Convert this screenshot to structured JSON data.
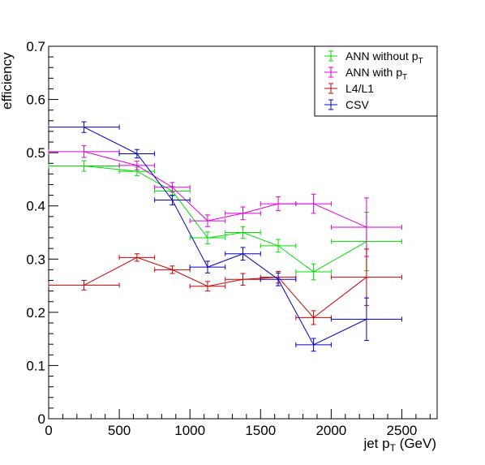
{
  "chart_data": {
    "type": "line",
    "title": "",
    "xlabel": {
      "main": "jet p",
      "sub": "T",
      "suffix": " (GeV)"
    },
    "ylabel": "efficiency",
    "xlim": [
      0,
      2750
    ],
    "ylim": [
      0,
      0.7
    ],
    "x_ticks": [
      0,
      500,
      1000,
      1500,
      2000,
      2500
    ],
    "y_ticks": [
      0,
      0.1,
      0.2,
      0.3,
      0.4,
      0.5,
      0.6,
      0.7
    ],
    "x_tick_labels": [
      "0",
      "500",
      "1000",
      "1500",
      "2000",
      "2500"
    ],
    "y_tick_labels": [
      "0",
      "0.1",
      "0.2",
      "0.3",
      "0.4",
      "0.5",
      "0.6",
      "0.7"
    ],
    "grid": false,
    "legend_position": "top-right",
    "series": [
      {
        "name": {
          "main": "ANN without p",
          "sub": "T"
        },
        "color": "#00dd00",
        "points": [
          {
            "x": 250,
            "xerr": 250,
            "y": 0.475,
            "yerr": 0.01
          },
          {
            "x": 625,
            "xerr": 125,
            "y": 0.465,
            "yerr": 0.008
          },
          {
            "x": 875,
            "xerr": 125,
            "y": 0.428,
            "yerr": 0.009
          },
          {
            "x": 1125,
            "xerr": 125,
            "y": 0.34,
            "yerr": 0.011
          },
          {
            "x": 1375,
            "xerr": 125,
            "y": 0.35,
            "yerr": 0.011
          },
          {
            "x": 1625,
            "xerr": 125,
            "y": 0.325,
            "yerr": 0.012
          },
          {
            "x": 1875,
            "xerr": 125,
            "y": 0.276,
            "yerr": 0.015
          },
          {
            "x": 2250,
            "xerr": 250,
            "y": 0.333,
            "yerr": 0.055
          }
        ]
      },
      {
        "name": {
          "main": "ANN with p",
          "sub": "T"
        },
        "color": "#dd00dd",
        "points": [
          {
            "x": 250,
            "xerr": 250,
            "y": 0.502,
            "yerr": 0.011
          },
          {
            "x": 625,
            "xerr": 125,
            "y": 0.476,
            "yerr": 0.008
          },
          {
            "x": 875,
            "xerr": 125,
            "y": 0.435,
            "yerr": 0.009
          },
          {
            "x": 1125,
            "xerr": 125,
            "y": 0.372,
            "yerr": 0.011
          },
          {
            "x": 1375,
            "xerr": 125,
            "y": 0.386,
            "yerr": 0.012
          },
          {
            "x": 1625,
            "xerr": 125,
            "y": 0.404,
            "yerr": 0.013
          },
          {
            "x": 1875,
            "xerr": 125,
            "y": 0.404,
            "yerr": 0.018
          },
          {
            "x": 2250,
            "xerr": 250,
            "y": 0.36,
            "yerr": 0.055
          }
        ]
      },
      {
        "name": {
          "main": "L4/L1",
          "sub": ""
        },
        "color": "#cc0000",
        "points": [
          {
            "x": 250,
            "xerr": 250,
            "y": 0.251,
            "yerr": 0.009
          },
          {
            "x": 625,
            "xerr": 125,
            "y": 0.303,
            "yerr": 0.007
          },
          {
            "x": 875,
            "xerr": 125,
            "y": 0.28,
            "yerr": 0.007
          },
          {
            "x": 1125,
            "xerr": 125,
            "y": 0.249,
            "yerr": 0.009
          },
          {
            "x": 1375,
            "xerr": 125,
            "y": 0.262,
            "yerr": 0.011
          },
          {
            "x": 1625,
            "xerr": 125,
            "y": 0.266,
            "yerr": 0.011
          },
          {
            "x": 1875,
            "xerr": 125,
            "y": 0.19,
            "yerr": 0.013
          },
          {
            "x": 2250,
            "xerr": 250,
            "y": 0.266,
            "yerr": 0.053
          }
        ]
      },
      {
        "name": {
          "main": "CSV",
          "sub": ""
        },
        "color": "#0000cc",
        "points": [
          {
            "x": 250,
            "xerr": 250,
            "y": 0.548,
            "yerr": 0.01
          },
          {
            "x": 625,
            "xerr": 125,
            "y": 0.498,
            "yerr": 0.008
          },
          {
            "x": 875,
            "xerr": 125,
            "y": 0.411,
            "yerr": 0.009
          },
          {
            "x": 1125,
            "xerr": 125,
            "y": 0.285,
            "yerr": 0.011
          },
          {
            "x": 1375,
            "xerr": 125,
            "y": 0.31,
            "yerr": 0.012
          },
          {
            "x": 1625,
            "xerr": 125,
            "y": 0.262,
            "yerr": 0.012
          },
          {
            "x": 1875,
            "xerr": 125,
            "y": 0.139,
            "yerr": 0.012
          },
          {
            "x": 2250,
            "xerr": 250,
            "y": 0.187,
            "yerr": 0.04
          }
        ]
      }
    ]
  }
}
